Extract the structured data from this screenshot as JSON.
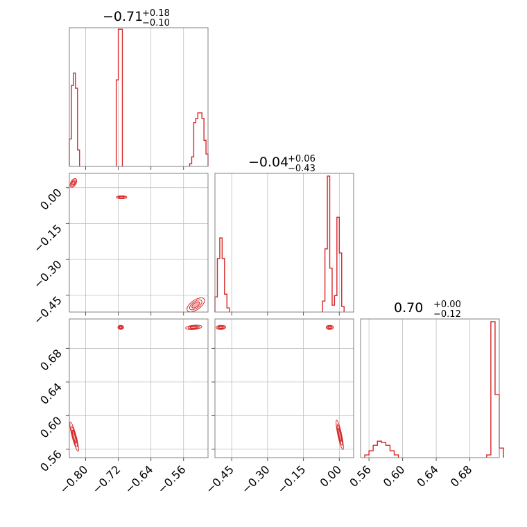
{
  "chart_data": {
    "type": "corner",
    "color": "#d62728",
    "parameters": [
      {
        "title": {
          "median": "−0.71",
          "plus": "+0.18",
          "minus": "−0.10"
        },
        "range": [
          -0.84,
          -0.5
        ],
        "ticks": [
          -0.8,
          -0.72,
          -0.64,
          -0.56
        ],
        "tick_labels": [
          "−0.80",
          "−0.72",
          "−0.64",
          "−0.56"
        ],
        "hist": {
          "bins": [
            [
              -0.84,
              -0.835,
              0.2
            ],
            [
              -0.835,
              -0.83,
              0.59
            ],
            [
              -0.83,
              -0.825,
              0.68
            ],
            [
              -0.825,
              -0.82,
              0.57
            ],
            [
              -0.82,
              -0.815,
              0.12
            ],
            [
              -0.725,
              -0.72,
              0.63
            ],
            [
              -0.72,
              -0.715,
              0.999
            ],
            [
              -0.715,
              -0.71,
              0.999
            ],
            [
              -0.545,
              -0.54,
              0.02
            ],
            [
              -0.54,
              -0.535,
              0.07
            ],
            [
              -0.535,
              -0.53,
              0.32
            ],
            [
              -0.53,
              -0.525,
              0.35
            ],
            [
              -0.525,
              -0.52,
              0.39
            ],
            [
              -0.52,
              -0.515,
              0.39
            ],
            [
              -0.515,
              -0.51,
              0.35
            ],
            [
              -0.51,
              -0.505,
              0.19
            ],
            [
              -0.505,
              -0.5,
              0.09
            ]
          ]
        }
      },
      {
        "title": {
          "median": "−0.04",
          "plus": "+0.06",
          "minus": "−0.43"
        },
        "range": [
          -0.52,
          0.06
        ],
        "ticks": [
          -0.45,
          -0.3,
          -0.15,
          0.0
        ],
        "tick_labels": [
          "−0.45",
          "−0.30",
          "−0.15",
          "0.00"
        ],
        "hist": {
          "bins": [
            [
              -0.52,
              -0.51,
              0.11
            ],
            [
              -0.51,
              -0.5,
              0.39
            ],
            [
              -0.5,
              -0.49,
              0.54
            ],
            [
              -0.49,
              -0.48,
              0.39
            ],
            [
              -0.48,
              -0.47,
              0.13
            ],
            [
              -0.47,
              -0.46,
              0.03
            ],
            [
              -0.07,
              -0.06,
              0.08
            ],
            [
              -0.06,
              -0.05,
              0.46
            ],
            [
              -0.05,
              -0.04,
              0.99
            ],
            [
              -0.04,
              -0.03,
              0.32
            ],
            [
              -0.03,
              -0.02,
              0.05
            ],
            [
              -0.02,
              -0.01,
              0.12
            ],
            [
              -0.01,
              0.0,
              0.69
            ],
            [
              0.0,
              0.01,
              0.43
            ],
            [
              0.01,
              0.02,
              0.04
            ]
          ]
        }
      },
      {
        "title": {
          "median": "0.70",
          "plus": "+0.00",
          "minus": "−0.12"
        },
        "range": [
          0.55,
          0.715
        ],
        "ticks": [
          0.56,
          0.6,
          0.64,
          0.68
        ],
        "tick_labels": [
          "0.56",
          "0.60",
          "0.64",
          "0.68"
        ],
        "hist": {
          "bins": [
            [
              0.555,
              0.56,
              0.02
            ],
            [
              0.56,
              0.565,
              0.05
            ],
            [
              0.565,
              0.57,
              0.09
            ],
            [
              0.57,
              0.575,
              0.12
            ],
            [
              0.575,
              0.58,
              0.11
            ],
            [
              0.58,
              0.585,
              0.09
            ],
            [
              0.585,
              0.59,
              0.05
            ],
            [
              0.59,
              0.595,
              0.02
            ],
            [
              0.7,
              0.705,
              0.02
            ],
            [
              0.705,
              0.71,
              0.99
            ],
            [
              0.71,
              0.715,
              0.46
            ],
            [
              0.715,
              0.72,
              0.07
            ]
          ]
        }
      }
    ],
    "pairs": [
      {
        "x": 0,
        "y": 1,
        "clusters": [
          {
            "x": -0.83,
            "y": 0.02,
            "sx": 0.0065,
            "sy": 0.02,
            "angle": -30
          },
          {
            "x": -0.712,
            "y": -0.04,
            "sx": 0.0035,
            "sy": 0.022,
            "angle": 90
          },
          {
            "x": -0.53,
            "y": -0.49,
            "sx": 0.025,
            "sy": 0.02,
            "angle": 35
          }
        ]
      },
      {
        "x": 0,
        "y": 2,
        "clusters": [
          {
            "x": -0.828,
            "y": 0.575,
            "sx": 0.005,
            "sy": 0.018,
            "angle": 15
          },
          {
            "x": -0.714,
            "y": 0.705,
            "sx": 0.007,
            "sy": 0.0025,
            "angle": 0
          },
          {
            "x": -0.535,
            "y": 0.705,
            "sx": 0.02,
            "sy": 0.0025,
            "angle": 5
          }
        ]
      },
      {
        "x": 1,
        "y": 2,
        "clusters": [
          {
            "x": -0.495,
            "y": 0.705,
            "sx": 0.02,
            "sy": 0.0025,
            "angle": 3
          },
          {
            "x": -0.04,
            "y": 0.705,
            "sx": 0.015,
            "sy": 0.0025,
            "angle": 0
          },
          {
            "x": 0.002,
            "y": 0.577,
            "sx": 0.008,
            "sy": 0.018,
            "angle": 12
          }
        ]
      }
    ]
  }
}
